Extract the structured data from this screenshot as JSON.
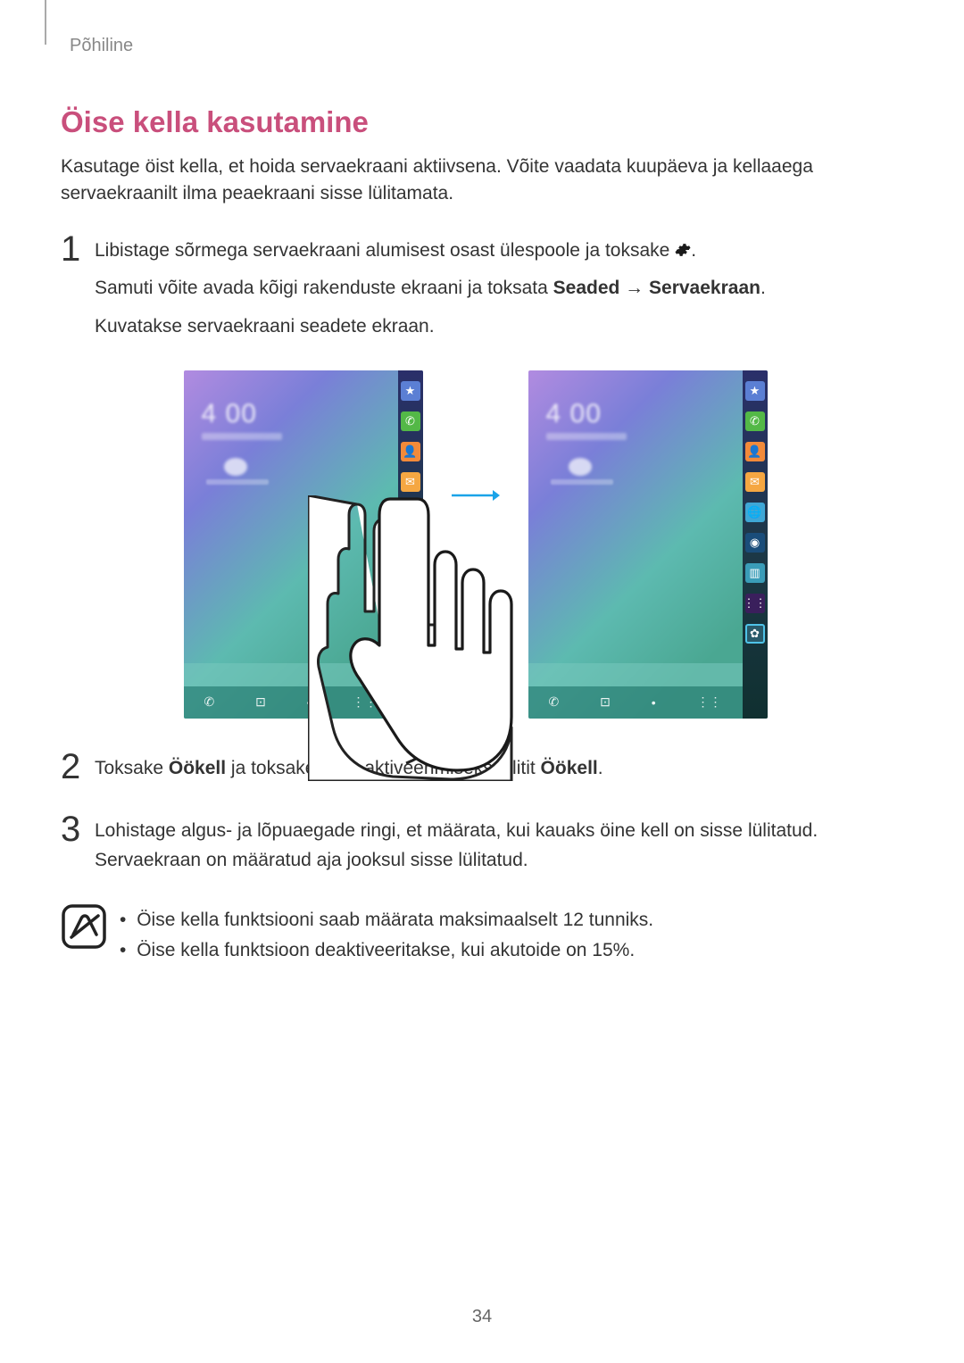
{
  "breadcrumb": "Põhiline",
  "title": "Öise kella kasutamine",
  "intro": "Kasutage öist kella, et hoida servaekraani aktiivsena. Võite vaadata kuupäeva ja kellaaega servaekraanilt ilma peaekraani sisse lülitamata.",
  "steps": [
    {
      "num": "1",
      "lines": [
        {
          "pre": "Libistage sõrmega servaekraani alumisest osast ülespoole ja toksake ",
          "hasGear": true,
          "post": "."
        },
        {
          "pre": "Samuti võite avada kõigi rakenduste ekraani ja toksata ",
          "bold1": "Seaded",
          "mid": " → ",
          "bold2": "Servaekraan",
          "post": "."
        },
        {
          "plain": "Kuvatakse servaekraani seadete ekraan."
        }
      ]
    },
    {
      "num": "2",
      "lines": [
        {
          "pre": "Toksake ",
          "bold1": "Öökell",
          "mid": " ja toksake selle aktiveerimiseks lülitit ",
          "bold2": "Öökell",
          "post": "."
        }
      ]
    },
    {
      "num": "3",
      "lines": [
        {
          "plain": "Lohistage algus- ja lõpuaegade ringi, et määrata, kui kauaks öine kell on sisse lülitatud. Servaekraan on määratud aja jooksul sisse lülitatud."
        }
      ]
    }
  ],
  "notes": [
    "Öise kella funktsiooni saab määrata maksimaalselt 12 tunniks.",
    "Öise kella funktsioon deaktiveeritakse, kui akutoide on 15%."
  ],
  "phone": {
    "clock": "4 00",
    "edge_icons_left": [
      {
        "cls": "star",
        "glyph": "★",
        "name": "star-icon"
      },
      {
        "cls": "phone-ico",
        "glyph": "✆",
        "name": "phone-icon"
      },
      {
        "cls": "contact-ico",
        "glyph": "👤",
        "name": "contact-icon"
      },
      {
        "cls": "mail-ico",
        "glyph": "✉",
        "name": "mail-icon"
      },
      {
        "cls": "globe-ico",
        "glyph": "🌐",
        "name": "globe-icon"
      },
      {
        "cls": "camera-ico",
        "glyph": "◉",
        "name": "camera-icon"
      }
    ],
    "edge_icons_right": [
      {
        "cls": "star",
        "glyph": "★",
        "name": "star-icon"
      },
      {
        "cls": "phone-ico",
        "glyph": "✆",
        "name": "phone-icon"
      },
      {
        "cls": "contact-ico",
        "glyph": "👤",
        "name": "contact-icon"
      },
      {
        "cls": "mail-ico",
        "glyph": "✉",
        "name": "mail-icon"
      },
      {
        "cls": "globe-ico",
        "glyph": "🌐",
        "name": "globe-icon"
      },
      {
        "cls": "camera-ico",
        "glyph": "◉",
        "name": "camera-icon"
      },
      {
        "cls": "file-ico",
        "glyph": "▥",
        "name": "file-icon"
      },
      {
        "cls": "more-ico",
        "glyph": "⋮⋮",
        "name": "more-icon"
      },
      {
        "cls": "gear-ico",
        "glyph": "✿",
        "name": "settings-icon"
      }
    ]
  },
  "colors": {
    "title": "#c94f7c",
    "arrow": "#1aa3e8",
    "text": "#333333"
  },
  "page_number": "34"
}
